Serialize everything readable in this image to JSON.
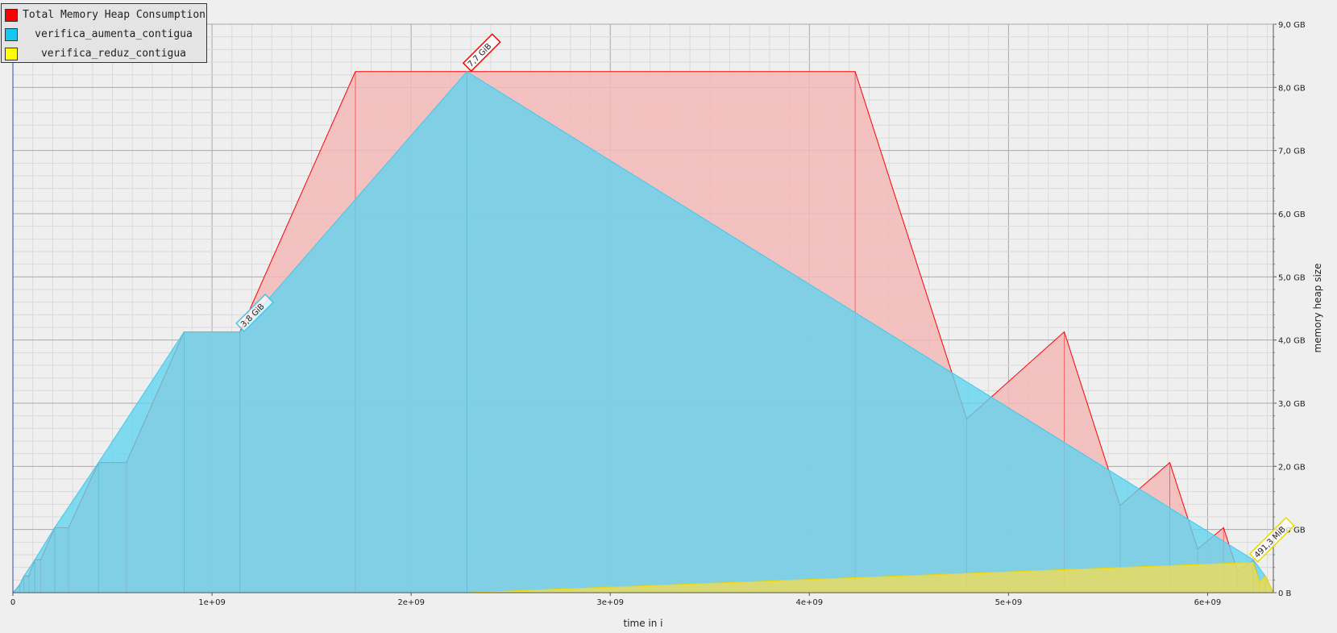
{
  "chart_data": {
    "type": "area",
    "xlabel": "time in i",
    "ylabel": "memory heap size",
    "xlim": [
      0,
      6330000000
    ],
    "ylim": [
      0,
      9.0
    ],
    "x_ticks": [
      {
        "value": 0,
        "label": "0"
      },
      {
        "value": 1000000000,
        "label": "1e+09"
      },
      {
        "value": 2000000000,
        "label": "2e+09"
      },
      {
        "value": 3000000000,
        "label": "3e+09"
      },
      {
        "value": 4000000000,
        "label": "4e+09"
      },
      {
        "value": 5000000000,
        "label": "5e+09"
      },
      {
        "value": 6000000000,
        "label": "6e+09"
      }
    ],
    "y_ticks": [
      {
        "value": 0,
        "label": "0 B"
      },
      {
        "value": 1.0,
        "label": "1,0 GB"
      },
      {
        "value": 2.0,
        "label": "2,0 GB"
      },
      {
        "value": 3.0,
        "label": "3,0 GB"
      },
      {
        "value": 4.0,
        "label": "4,0 GB"
      },
      {
        "value": 5.0,
        "label": "5,0 GB"
      },
      {
        "value": 6.0,
        "label": "6,0 GB"
      },
      {
        "value": 7.0,
        "label": "7,0 GB"
      },
      {
        "value": 8.0,
        "label": "8,0 GB"
      },
      {
        "value": 9.0,
        "label": "9,0 GB"
      }
    ],
    "grid": true,
    "legend_position": "top-left",
    "series": [
      {
        "name": "Total Memory Heap Consumption",
        "color": "#ff0000",
        "fill": "#f4b9b9",
        "points": [
          [
            0,
            0
          ],
          [
            15000000,
            0.05
          ],
          [
            35000000,
            0.13
          ],
          [
            55000000,
            0.26
          ],
          [
            80000000,
            0.26
          ],
          [
            110000000,
            0.52
          ],
          [
            140000000,
            0.52
          ],
          [
            210000000,
            1.03
          ],
          [
            280000000,
            1.03
          ],
          [
            430000000,
            2.06
          ],
          [
            570000000,
            2.06
          ],
          [
            860000000,
            4.13
          ],
          [
            1140000000,
            4.13
          ],
          [
            1720000000,
            8.25
          ],
          [
            2280000000,
            8.25
          ],
          [
            4230000000,
            8.25
          ],
          [
            4790000000,
            2.75
          ],
          [
            5280000000,
            4.13
          ],
          [
            5560000000,
            1.38
          ],
          [
            5810000000,
            2.06
          ],
          [
            5950000000,
            0.69
          ],
          [
            6080000000,
            1.03
          ],
          [
            6150000000,
            0.34
          ],
          [
            6230000000,
            0.52
          ],
          [
            6260000000,
            0.17
          ],
          [
            6290000000,
            0.26
          ],
          [
            6330000000,
            0
          ]
        ]
      },
      {
        "name": "verifica_aumenta_contigua",
        "color": "#3fc8ea",
        "fill": "#5fd3ef",
        "points": [
          [
            0,
            0
          ],
          [
            15000000,
            0.05
          ],
          [
            35000000,
            0.13
          ],
          [
            55000000,
            0.26
          ],
          [
            110000000,
            0.52
          ],
          [
            210000000,
            1.03
          ],
          [
            430000000,
            2.06
          ],
          [
            860000000,
            4.13
          ],
          [
            1140000000,
            4.13
          ],
          [
            2280000000,
            8.25
          ],
          [
            6230000000,
            0.52
          ],
          [
            6290000000,
            0.26
          ],
          [
            6330000000,
            0
          ]
        ]
      },
      {
        "name": "verifica_reduz_contigua",
        "color": "#f0d800",
        "fill": "#f2dd55",
        "points": [
          [
            0,
            0
          ],
          [
            2280000000,
            0
          ],
          [
            6230000000,
            0.48
          ],
          [
            6260000000,
            0.17
          ],
          [
            6290000000,
            0.26
          ],
          [
            6330000000,
            0
          ]
        ]
      }
    ],
    "annotations": [
      {
        "text": "7,7 GiB",
        "x": 2280000000,
        "y": 8.25,
        "series": 0
      },
      {
        "text": "3,8 GiB",
        "x": 1140000000,
        "y": 4.13,
        "series": 1
      },
      {
        "text": "491,3 MiB",
        "x": 6230000000,
        "y": 0.48,
        "series": 2
      }
    ]
  }
}
